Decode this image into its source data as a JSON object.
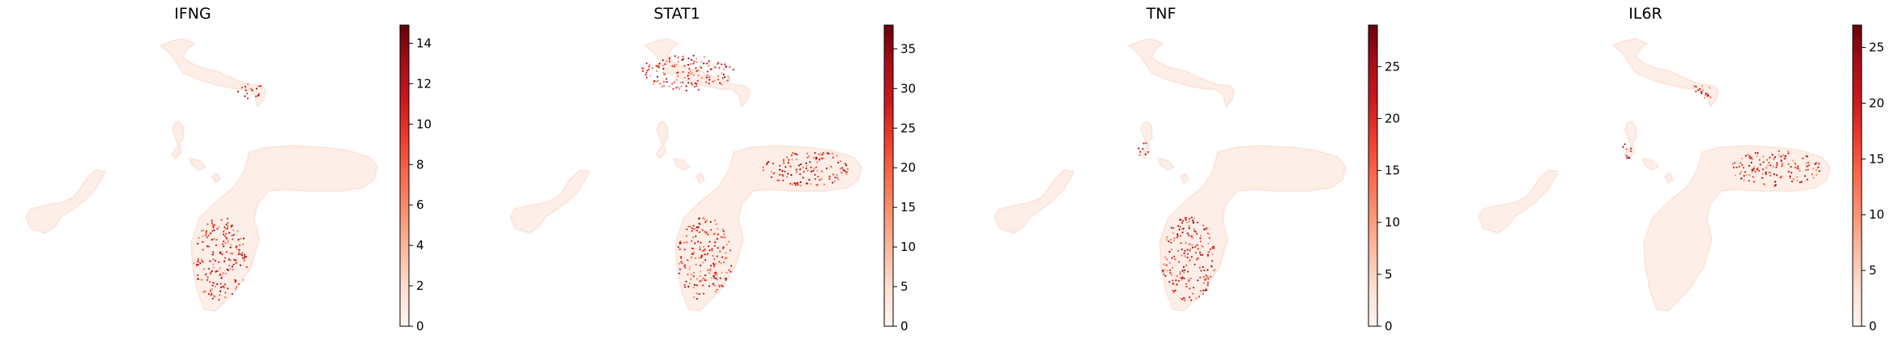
{
  "chart_data": [
    {
      "type": "scatter",
      "title": "IFNG",
      "xlabel": "",
      "ylabel": "",
      "colormap": "Reds",
      "colorbar": {
        "ticks": [
          0,
          2,
          4,
          6,
          8,
          10,
          12,
          14
        ],
        "range": [
          0,
          14.9
        ]
      },
      "expression_hotspots": [
        "lower-lobe",
        "upper-arm-tip"
      ],
      "axes_visible": false,
      "grid": false
    },
    {
      "type": "scatter",
      "title": "STAT1",
      "xlabel": "",
      "ylabel": "",
      "colormap": "Reds",
      "colorbar": {
        "ticks": [
          0,
          5,
          10,
          15,
          20,
          25,
          30,
          35
        ],
        "range": [
          0,
          38
        ]
      },
      "expression_hotspots": [
        "upper-arm",
        "right-lobe",
        "lower-lobe"
      ],
      "axes_visible": false,
      "grid": false
    },
    {
      "type": "scatter",
      "title": "TNF",
      "xlabel": "",
      "ylabel": "",
      "colormap": "Reds",
      "colorbar": {
        "ticks": [
          0,
          5,
          10,
          15,
          20,
          25
        ],
        "range": [
          0,
          29
        ]
      },
      "expression_hotspots": [
        "small-cluster",
        "lower-lobe"
      ],
      "axes_visible": false,
      "grid": false
    },
    {
      "type": "scatter",
      "title": "IL6R",
      "xlabel": "",
      "ylabel": "",
      "colormap": "Reds",
      "colorbar": {
        "ticks": [
          0,
          5,
          10,
          15,
          20,
          25
        ],
        "range": [
          0,
          27
        ]
      },
      "expression_hotspots": [
        "right-lobe",
        "small-cluster",
        "upper-arm-tip"
      ],
      "axes_visible": false,
      "grid": false
    }
  ],
  "colors": {
    "background_cells": "#fdeee7",
    "cmap_low": "#fff5f0",
    "cmap_high": "#67000d"
  }
}
